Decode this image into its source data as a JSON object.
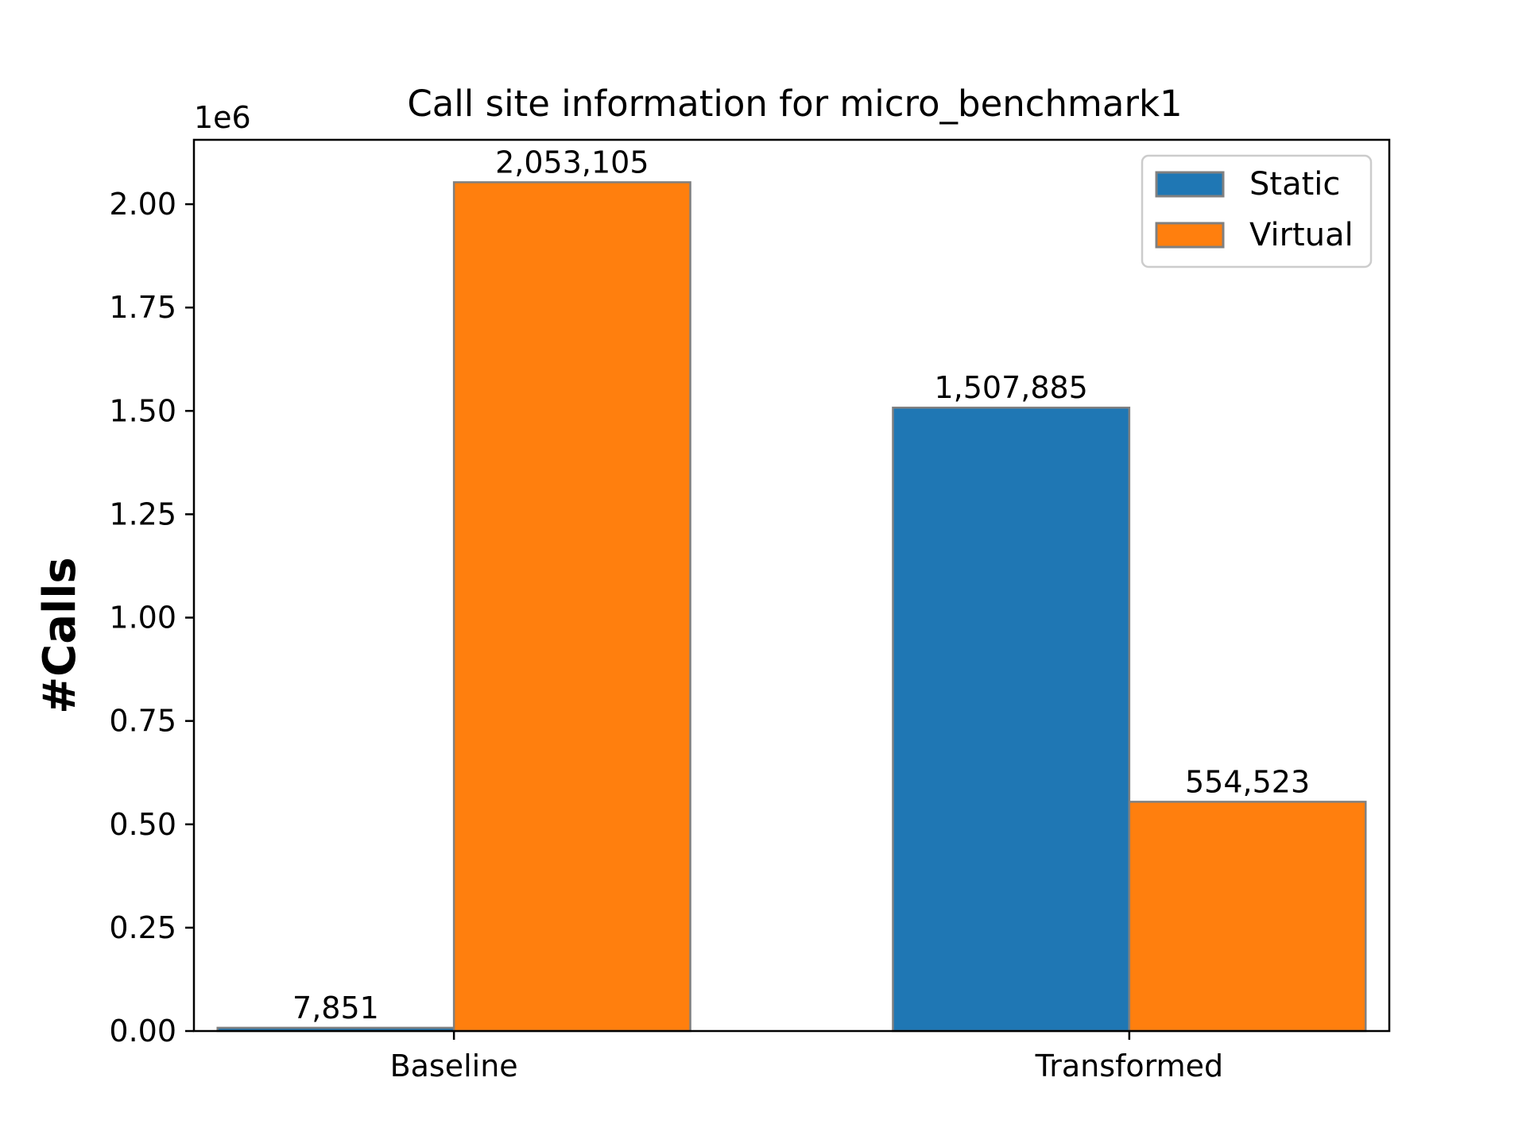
{
  "chart_data": {
    "type": "bar",
    "title": "Call site information for micro_benchmark1",
    "xlabel": "",
    "ylabel": "#Calls",
    "offset_label": "1e6",
    "categories": [
      "Baseline",
      "Transformed"
    ],
    "series": [
      {
        "name": "Static",
        "color": "#1f77b4",
        "values": [
          7851,
          1507885
        ],
        "value_labels": [
          "7,851",
          "1,507,885"
        ]
      },
      {
        "name": "Virtual",
        "color": "#ff7f0e",
        "values": [
          2053105,
          554523
        ],
        "value_labels": [
          "2,053,105",
          "554,523"
        ]
      }
    ],
    "ylim": [
      0,
      2155760
    ],
    "yticks": [
      0,
      250000,
      500000,
      750000,
      1000000,
      1250000,
      1500000,
      1750000,
      2000000
    ],
    "ytick_labels": [
      "0.00",
      "0.25",
      "0.50",
      "0.75",
      "1.00",
      "1.25",
      "1.50",
      "1.75",
      "2.00"
    ],
    "bar_edge_color": "#808080",
    "grid": false,
    "legend_position": "top-right"
  }
}
